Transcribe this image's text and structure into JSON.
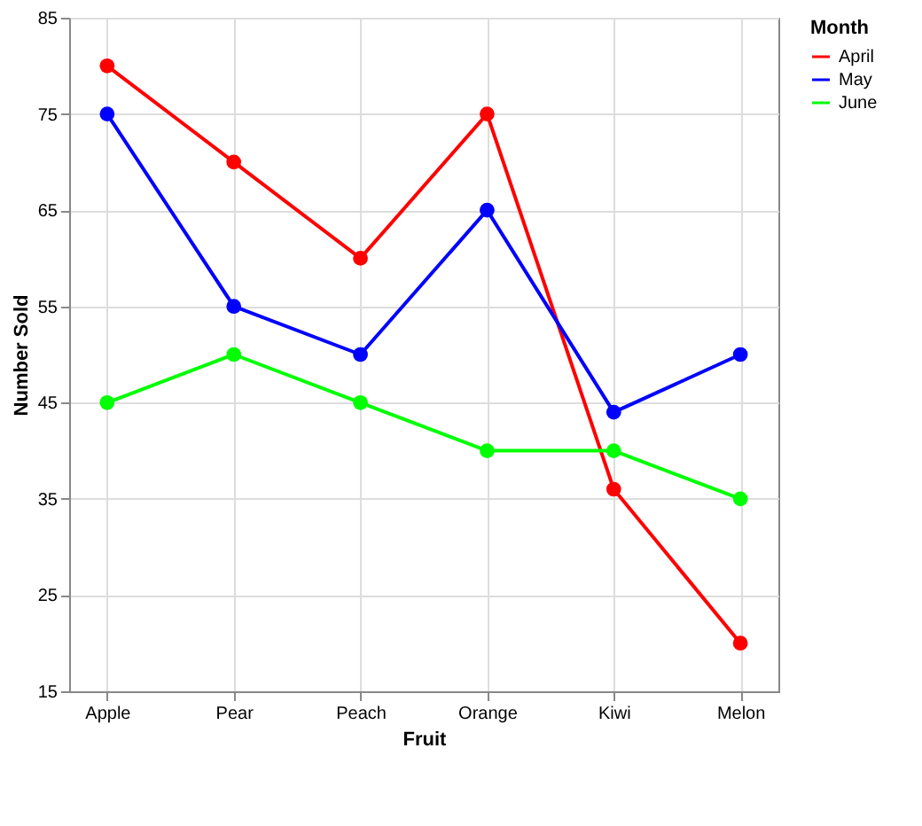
{
  "chart_data": {
    "type": "line",
    "xlabel": "Fruit",
    "ylabel": "Number Sold",
    "legend_title": "Month",
    "categories": [
      "Apple",
      "Pear",
      "Peach",
      "Orange",
      "Kiwi",
      "Melon"
    ],
    "series": [
      {
        "name": "April",
        "color": "#ff0000",
        "values": [
          80,
          70,
          60,
          75,
          36,
          20
        ]
      },
      {
        "name": "May",
        "color": "#0000ff",
        "values": [
          75,
          55,
          50,
          65,
          44,
          50
        ]
      },
      {
        "name": "June",
        "color": "#00ff00",
        "values": [
          45,
          50,
          45,
          40,
          40,
          35
        ]
      }
    ],
    "ylim": [
      15,
      85
    ],
    "yticks": [
      15,
      25,
      35,
      45,
      55,
      65,
      75,
      85
    ],
    "grid": true,
    "marker": "circle",
    "legend": "right"
  }
}
